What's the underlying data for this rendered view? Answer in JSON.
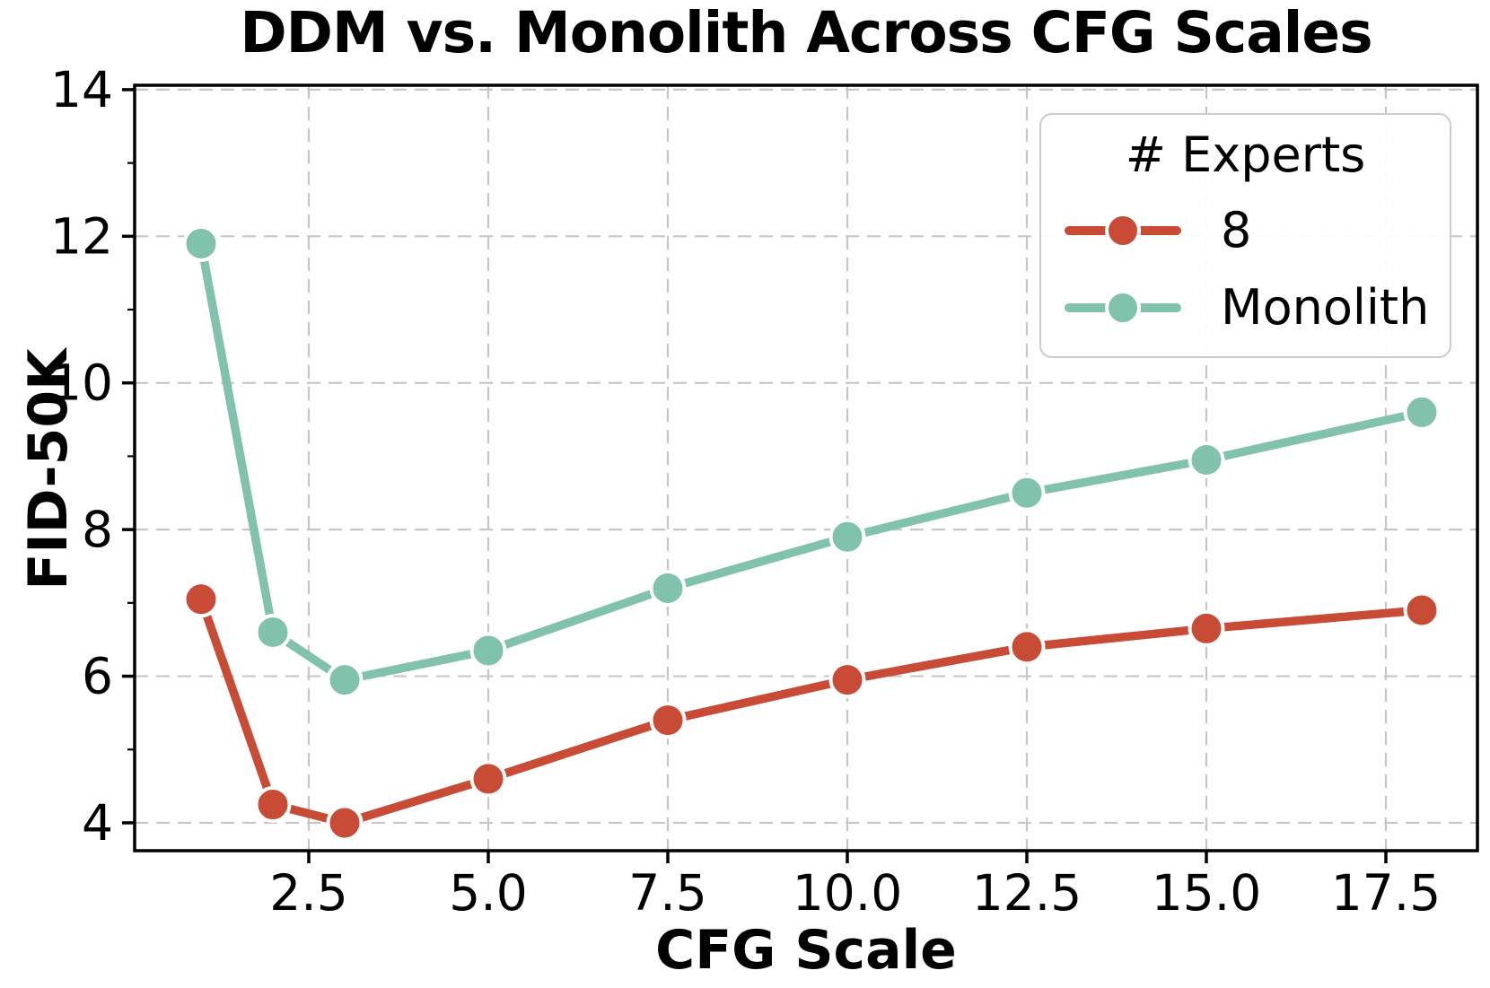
{
  "chart_data": {
    "type": "line",
    "title": "DDM vs. Monolith Across CFG Scales",
    "xlabel": "CFG Scale",
    "ylabel": "FID-50K",
    "legend_title": "# Experts",
    "legend_position": "upper right",
    "grid": true,
    "x": [
      1,
      2,
      3,
      5,
      7.5,
      10,
      12.5,
      15,
      18
    ],
    "series": [
      {
        "name": "8",
        "color": "#c74b35",
        "values": [
          7.05,
          4.25,
          4.0,
          4.6,
          5.4,
          5.95,
          6.4,
          6.65,
          6.9
        ]
      },
      {
        "name": "Monolith",
        "color": "#81c2ac",
        "values": [
          11.9,
          6.6,
          5.95,
          6.35,
          7.2,
          7.9,
          8.5,
          8.95,
          9.6
        ]
      }
    ],
    "xlim": [
      0.075,
      18.775
    ],
    "ylim": [
      3.62,
      14.06
    ],
    "xticks": {
      "values": [
        2.5,
        5.0,
        7.5,
        10.0,
        12.5,
        15.0,
        17.5
      ],
      "labels": [
        "2.5",
        "5.0",
        "7.5",
        "10.0",
        "12.5",
        "15.0",
        "17.5"
      ]
    },
    "yticks": {
      "values": [
        4,
        6,
        8,
        10,
        12,
        14
      ],
      "labels": [
        "4",
        "6",
        "8",
        "10",
        "12",
        "14"
      ]
    },
    "yticks_minor": [
      5,
      7,
      9,
      11,
      13
    ],
    "grid_color": "#c6c6c6",
    "axis_color": "#000000"
  }
}
